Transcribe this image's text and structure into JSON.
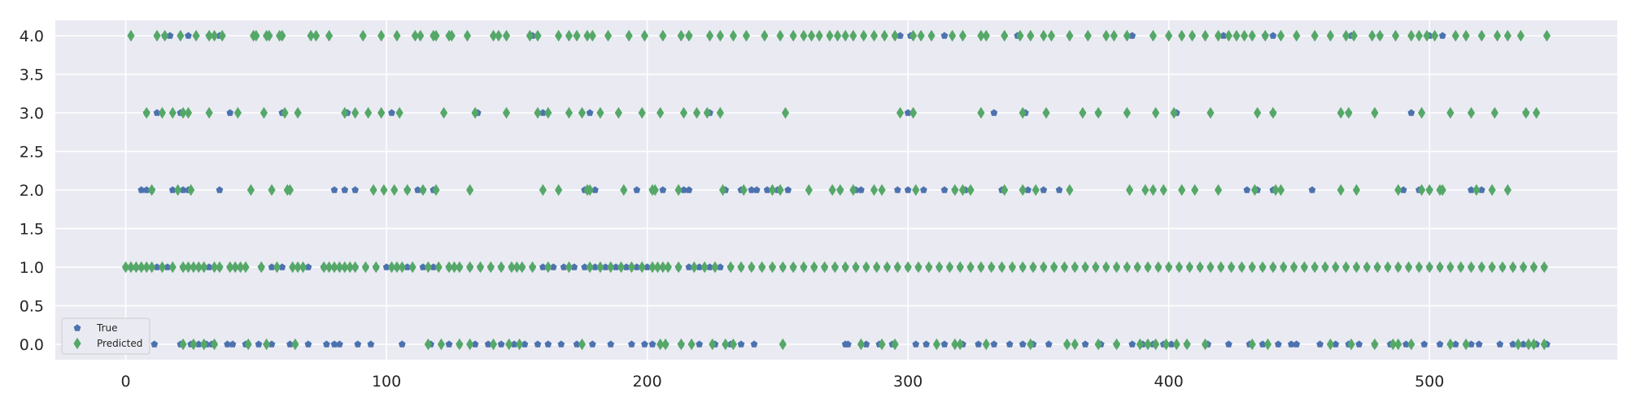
{
  "chart_data": {
    "type": "scatter",
    "title": "",
    "xlabel": "",
    "ylabel": "",
    "xlim": [
      -27,
      572
    ],
    "ylim": [
      -0.2,
      4.2
    ],
    "xticks": [
      0,
      100,
      200,
      300,
      400,
      500
    ],
    "yticks": [
      0.0,
      0.5,
      1.0,
      1.5,
      2.0,
      2.5,
      3.0,
      3.5,
      4.0
    ],
    "ytick_labels": [
      "0.0",
      "0.5",
      "1.0",
      "1.5",
      "2.0",
      "2.5",
      "3.0",
      "3.5",
      "4.0"
    ],
    "grid": true,
    "legend_position": "lower-left",
    "colors": {
      "background": "#EAEAF2",
      "grid": "#FFFFFF",
      "true": "#4C72B0",
      "predicted": "#55A868"
    },
    "series": [
      {
        "name": "True",
        "marker": "pentagon",
        "points": {
          "4.0": [
            15,
            17,
            24,
            32,
            36,
            156,
            216,
            297,
            301,
            314,
            342,
            386,
            421,
            437,
            440,
            470,
            481,
            500,
            505
          ],
          "3.0": [
            8,
            12,
            21,
            40,
            60,
            85,
            102,
            135,
            160,
            178,
            224,
            300,
            333,
            345,
            373,
            403,
            440,
            469,
            493,
            537
          ],
          "2.0": [
            6,
            8,
            10,
            18,
            22,
            24,
            36,
            80,
            84,
            88,
            108,
            112,
            114,
            118,
            176,
            180,
            196,
            202,
            206,
            214,
            216,
            230,
            236,
            240,
            242,
            246,
            250,
            254,
            274,
            280,
            282,
            296,
            300,
            306,
            314,
            318,
            322,
            336,
            346,
            352,
            358,
            430,
            434,
            440,
            455,
            490,
            496,
            500,
            516,
            520
          ],
          "1.0": [
            0,
            2,
            4,
            6,
            12,
            16,
            22,
            28,
            32,
            36,
            40,
            44,
            52,
            56,
            60,
            70,
            76,
            80,
            84,
            88,
            92,
            96,
            100,
            104,
            108,
            114,
            118,
            124,
            128,
            132,
            136,
            140,
            144,
            148,
            152,
            156,
            160,
            164,
            168,
            172,
            176,
            180,
            184,
            188,
            192,
            196,
            200,
            204,
            208,
            212,
            216,
            220,
            224,
            228,
            232,
            236,
            240,
            244,
            248,
            252,
            256,
            260,
            264,
            268,
            272,
            276,
            280,
            284,
            288,
            292,
            296,
            300,
            304,
            308,
            312,
            316,
            320,
            324,
            328,
            332,
            336,
            340,
            344,
            348,
            352,
            356,
            360,
            364,
            368,
            372,
            376,
            380,
            384,
            388,
            392,
            396,
            400,
            404,
            408,
            412,
            416,
            420,
            424,
            428,
            432,
            436,
            440,
            444,
            448,
            452,
            456,
            460,
            464,
            468,
            472,
            476,
            480,
            484,
            488,
            492,
            496,
            500,
            504,
            508,
            512,
            516,
            520,
            524,
            528,
            532,
            536,
            540,
            544
          ],
          "0.0": [
            11,
            21,
            25,
            28,
            31,
            33,
            39,
            41,
            46,
            51,
            56,
            63,
            70,
            77,
            80,
            82,
            89,
            94,
            106,
            117,
            124,
            128,
            134,
            139,
            144,
            149,
            153,
            158,
            162,
            167,
            173,
            179,
            186,
            194,
            199,
            202,
            207,
            213,
            220,
            226,
            232,
            236,
            241,
            276,
            277,
            284,
            289,
            294,
            303,
            307,
            314,
            321,
            327,
            333,
            339,
            344,
            348,
            354,
            361,
            368,
            374,
            380,
            386,
            390,
            394,
            398,
            401,
            407,
            415,
            423,
            431,
            436,
            442,
            447,
            449,
            458,
            464,
            469,
            473,
            479,
            485,
            491,
            498,
            504,
            510,
            516,
            519,
            527,
            532,
            536,
            541,
            545
          ]
        }
      },
      {
        "name": "Predicted",
        "marker": "diamond",
        "points": {
          "4.0": [
            2,
            12,
            15,
            21,
            27,
            32,
            34,
            37,
            49,
            50,
            54,
            55,
            59,
            60,
            71,
            73,
            78,
            91,
            98,
            104,
            111,
            113,
            118,
            119,
            124,
            125,
            131,
            141,
            143,
            146,
            155,
            158,
            166,
            170,
            173,
            177,
            179,
            185,
            193,
            199,
            206,
            213,
            216,
            224,
            228,
            233,
            238,
            245,
            251,
            256,
            260,
            263,
            266,
            270,
            273,
            276,
            279,
            283,
            287,
            291,
            295,
            302,
            305,
            309,
            317,
            321,
            328,
            330,
            337,
            343,
            347,
            352,
            355,
            362,
            369,
            376,
            379,
            384,
            394,
            400,
            405,
            409,
            414,
            419,
            423,
            426,
            429,
            432,
            437,
            443,
            449,
            456,
            462,
            468,
            471,
            478,
            481,
            487,
            493,
            496,
            499,
            502,
            510,
            514,
            520,
            526,
            530,
            535,
            545
          ],
          "3.0": [
            8,
            14,
            18,
            22,
            24,
            32,
            43,
            53,
            61,
            66,
            84,
            88,
            93,
            98,
            105,
            122,
            134,
            146,
            158,
            162,
            170,
            175,
            182,
            189,
            198,
            205,
            214,
            219,
            223,
            228,
            253,
            297,
            302,
            328,
            344,
            353,
            367,
            373,
            384,
            395,
            402,
            416,
            434,
            440,
            466,
            469,
            479,
            497,
            508,
            516,
            525,
            537,
            541
          ],
          "2.0": [
            10,
            20,
            25,
            48,
            56,
            62,
            63,
            95,
            99,
            103,
            108,
            114,
            119,
            132,
            160,
            166,
            177,
            178,
            191,
            202,
            203,
            212,
            229,
            237,
            248,
            251,
            262,
            271,
            274,
            279,
            287,
            290,
            303,
            318,
            321,
            324,
            337,
            344,
            349,
            362,
            385,
            391,
            394,
            398,
            405,
            410,
            419,
            433,
            441,
            443,
            466,
            472,
            488,
            497,
            500,
            504,
            505,
            518,
            524,
            530
          ],
          "1.0": [
            0,
            2,
            4,
            6,
            8,
            10,
            14,
            18,
            22,
            24,
            26,
            28,
            30,
            34,
            36,
            40,
            42,
            44,
            46,
            52,
            58,
            64,
            66,
            68,
            76,
            78,
            80,
            82,
            84,
            86,
            88,
            92,
            96,
            102,
            104,
            106,
            110,
            116,
            120,
            124,
            126,
            128,
            132,
            136,
            140,
            144,
            148,
            150,
            152,
            156,
            162,
            170,
            178,
            182,
            186,
            190,
            194,
            198,
            202,
            204,
            206,
            208,
            212,
            218,
            222,
            226,
            232,
            236,
            240,
            244,
            248,
            252,
            256,
            260,
            264,
            268,
            272,
            276,
            280,
            284,
            288,
            292,
            296,
            300,
            304,
            308,
            312,
            316,
            320,
            324,
            328,
            332,
            336,
            340,
            344,
            348,
            352,
            356,
            360,
            364,
            368,
            372,
            376,
            380,
            384,
            388,
            392,
            396,
            400,
            404,
            408,
            412,
            416,
            420,
            424,
            428,
            432,
            436,
            440,
            444,
            448,
            452,
            456,
            460,
            464,
            468,
            472,
            476,
            480,
            484,
            488,
            492,
            496,
            500,
            504,
            508,
            512,
            516,
            520,
            524,
            528,
            532,
            536,
            540,
            544
          ],
          "0.0": [
            22,
            26,
            30,
            34,
            47,
            54,
            65,
            116,
            121,
            128,
            132,
            141,
            147,
            151,
            175,
            205,
            207,
            213,
            217,
            225,
            230,
            233,
            252,
            282,
            290,
            295,
            311,
            318,
            320,
            330,
            347,
            361,
            364,
            373,
            380,
            389,
            392,
            395,
            399,
            403,
            407,
            414,
            432,
            438,
            462,
            470,
            479,
            486,
            488,
            493,
            508,
            514,
            534,
            538,
            540,
            544
          ]
        }
      }
    ]
  }
}
